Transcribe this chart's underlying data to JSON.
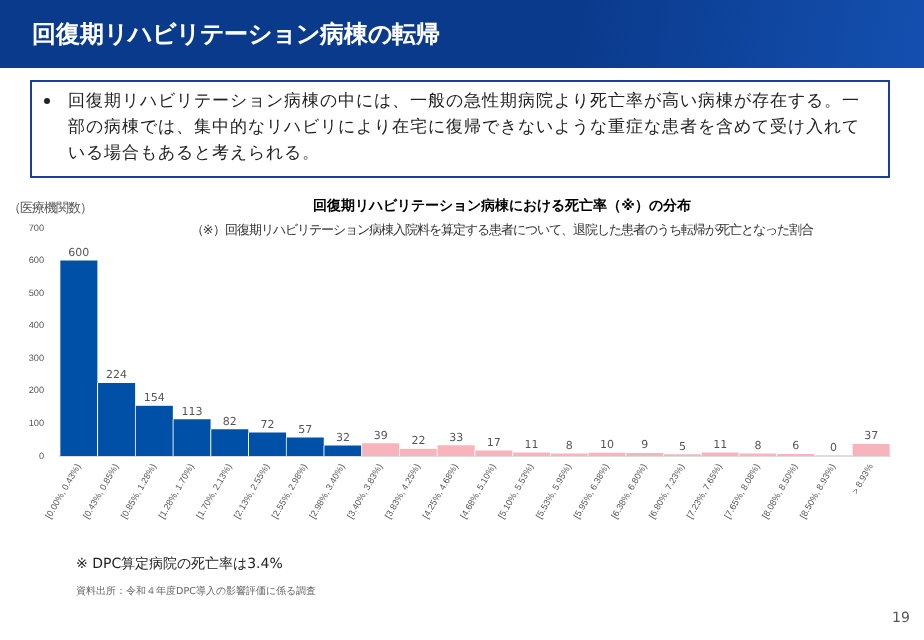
{
  "chart_data": {
    "type": "bar",
    "title": "回復期リハビリテーション病棟における死亡率（※）の分布",
    "subtitle": "（※）回復期リハビリテーション病棟入院料を算定する患者について、退院した患者のうち転帰が死亡となった割合",
    "ylabel": "（医療機関数）",
    "categories": [
      "[0.00%, 0.43%)",
      "[0.43%, 0.85%)",
      "[0.85%, 1.28%)",
      "[1.28%, 1.70%)",
      "[1.70%, 2.13%)",
      "[2.13%, 2.55%)",
      "[2.55%, 2.98%)",
      "[2.98%, 3.40%)",
      "[3.40%, 3.83%)",
      "[3.83%, 4.25%)",
      "[4.25%, 4.68%)",
      "[4.68%, 5.10%)",
      "[5.10%, 5.53%)",
      "[5.53%, 5.95%)",
      "[5.95%, 6.38%)",
      "[6.38%, 6.80%)",
      "[6.80%, 7.23%)",
      "[7.23%, 7.65%)",
      "[7.65%, 8.08%)",
      "[8.08%, 8.50%)",
      "[8.50%, 8.93%)",
      "> 8.93%"
    ],
    "values": [
      600,
      224,
      154,
      113,
      82,
      72,
      57,
      32,
      39,
      22,
      33,
      17,
      11,
      8,
      10,
      9,
      5,
      11,
      8,
      6,
      0,
      37
    ],
    "colors": [
      "#0050a8",
      "#0050a8",
      "#0050a8",
      "#0050a8",
      "#0050a8",
      "#0050a8",
      "#0050a8",
      "#0050a8",
      "#f8b4bc",
      "#f8b4bc",
      "#f8b4bc",
      "#f8b4bc",
      "#f8b4bc",
      "#f8b4bc",
      "#f8b4bc",
      "#f8b4bc",
      "#f8b4bc",
      "#f8b4bc",
      "#f8b4bc",
      "#f8b4bc",
      "#f8b4bc",
      "#f8b4bc"
    ],
    "ylim": [
      0,
      700
    ],
    "yticks": [
      0,
      100,
      200,
      300,
      400,
      500,
      600,
      700
    ],
    "grid": false,
    "legend": false,
    "data_labels": true,
    "annotations": [
      "回復期リハビリテーション病棟の転帰",
      "回復期リハビリテーション病棟の中には、一般の急性期病院より死亡率が高い病棟が存在する。一部の病棟では、集中的なリハビリにより在宅に復帰できないような重症な患者を含めて受け入れている場合もあると考えられる。",
      "※ DPC算定病院の死亡率は3.4%",
      "資料出所：令和４年度DPC導入の影響評価に係る調査",
      "19"
    ]
  }
}
